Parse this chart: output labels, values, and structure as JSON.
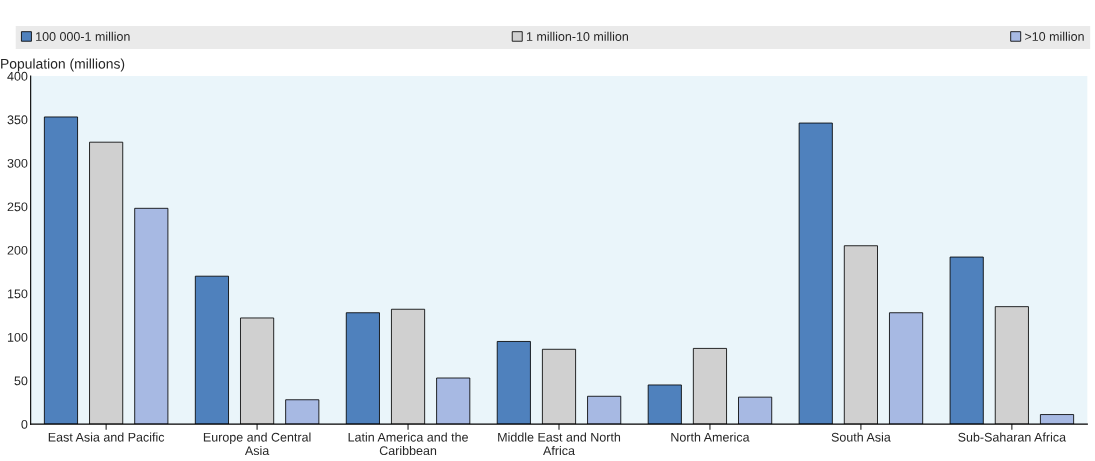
{
  "chart_data": {
    "type": "bar",
    "ylabel": "Population (millions)",
    "categories": [
      "East Asia and Pacific",
      "Europe and Central Asia",
      "Latin America and the Caribbean",
      "Middle East and North Africa",
      "North America",
      "South Asia",
      "Sub-Saharan Africa"
    ],
    "series": [
      {
        "name": "100 000-1 million",
        "color": "#4f81bd",
        "values": [
          353,
          170,
          128,
          95,
          45,
          346,
          192
        ]
      },
      {
        "name": "1 million-10 million",
        "color": "#d0d0d0",
        "values": [
          324,
          122,
          132,
          86,
          87,
          205,
          135
        ]
      },
      {
        "name": ">10 million",
        "color": "#a7b9e3",
        "values": [
          248,
          28,
          53,
          32,
          31,
          128,
          11
        ]
      }
    ],
    "ylim": [
      0,
      400
    ],
    "yticks": [
      0,
      50,
      100,
      150,
      200,
      250,
      300,
      350,
      400
    ],
    "grid": false,
    "legend": "top"
  }
}
